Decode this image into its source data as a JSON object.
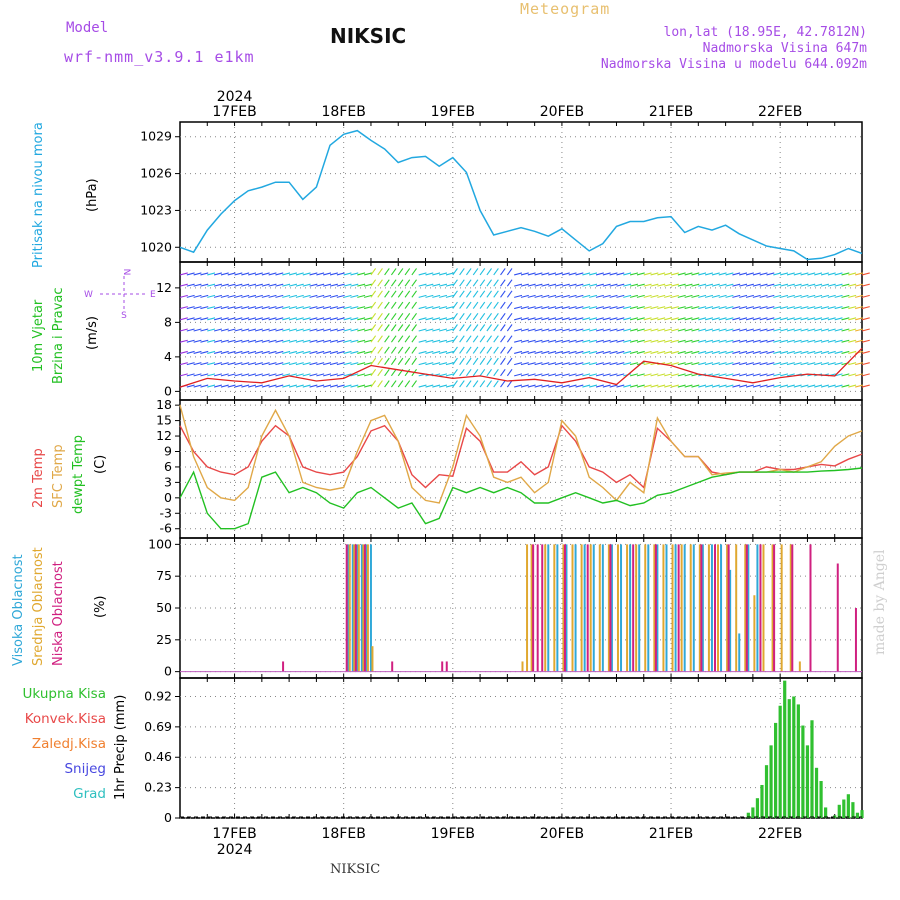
{
  "header": {
    "model_label": "Model",
    "model_name": "wrf-nmm_v3.9.1 e1km",
    "station": "NIKSIC",
    "title": "Meteogram",
    "lonlat": "lon,lat (18.95E, 42.7812N)",
    "altitude": "Nadmorska Visina 647m",
    "model_altitude": "Nadmorska Visina u modelu 644.092m"
  },
  "footer": {
    "station": "NIKSIC",
    "credit": "made by Angel"
  },
  "colors": {
    "pressure": "#22a8e0",
    "temp2m": "#e84848",
    "sfc": "#e0a848",
    "dewpt": "#22c022",
    "high_cloud": "#30a8d8",
    "mid_cloud": "#e0a830",
    "low_cloud": "#d02080",
    "precip": "#30c030",
    "label_purple": "#a64ce6"
  },
  "chart_data": [
    {
      "type": "line",
      "name": "pressure",
      "ylabel": "Pritisak na nivou mora",
      "unit": "(hPa)",
      "year": "2024",
      "dates": [
        "17FEB",
        "18FEB",
        "19FEB",
        "20FEB",
        "21FEB",
        "22FEB"
      ],
      "yticks": [
        1020,
        1023,
        1026,
        1029
      ],
      "ylim": [
        1018.8,
        1030.2
      ],
      "series": [
        {
          "x": [
            0,
            3,
            6,
            9,
            12,
            15,
            18,
            21,
            24,
            27,
            30,
            33,
            36,
            39,
            42,
            45,
            48,
            51,
            54,
            57,
            60,
            63,
            66,
            69,
            72,
            75,
            78,
            81,
            84,
            87,
            90,
            93,
            96,
            99,
            102,
            105,
            108,
            111,
            114,
            117,
            120,
            123,
            126,
            129,
            132,
            135,
            138,
            141,
            144,
            147,
            150
          ],
          "y": [
            1020,
            1019.6,
            1021.4,
            1022.7,
            1023.8,
            1024.6,
            1024.9,
            1025.3,
            1025.3,
            1023.9,
            1024.9,
            1028.3,
            1029.2,
            1029.5,
            1028.7,
            1028.0,
            1026.9,
            1027.3,
            1027.4,
            1026.6,
            1027.3,
            1026.1,
            1023.0,
            1021.0,
            1021.3,
            1021.6,
            1021.3,
            1020.9,
            1021.5,
            1020.6,
            1019.7,
            1020.3,
            1021.7,
            1022.1,
            1022.1,
            1022.4,
            1022.5,
            1021.2,
            1021.7,
            1021.4,
            1021.8,
            1021.1,
            1020.6,
            1020.1,
            1019.9,
            1019.7,
            1019.0,
            1019.1,
            1019.4,
            1019.9,
            1019.5
          ]
        }
      ]
    },
    {
      "type": "barb",
      "name": "wind",
      "ylabel": "10m Vjetar Brzina i Pravac",
      "unit": "(m/s)",
      "compass": [
        "N",
        "E",
        "W",
        "S"
      ],
      "yticks": [
        0,
        4,
        8,
        12
      ],
      "ylim": [
        -1,
        15
      ],
      "series": [
        {
          "name": "speed",
          "x": [
            0,
            6,
            12,
            18,
            24,
            30,
            36,
            42,
            48,
            54,
            60,
            66,
            72,
            78,
            84,
            90,
            96,
            102,
            108,
            114,
            120,
            126,
            132,
            138,
            144,
            150
          ],
          "y": [
            0.5,
            1.5,
            1.2,
            1.0,
            1.8,
            1.2,
            1.5,
            3.0,
            2.5,
            2.0,
            1.5,
            1.8,
            1.2,
            1.4,
            1.0,
            1.6,
            0.8,
            3.5,
            3.0,
            2.0,
            1.5,
            1.0,
            1.6,
            2.0,
            1.8,
            5.0
          ]
        }
      ]
    },
    {
      "type": "line",
      "name": "temperature",
      "ylabel": [
        "2m Temp",
        "SFC Temp",
        "dewpt Temp"
      ],
      "unit": "(C)",
      "yticks": [
        -6,
        -3,
        0,
        3,
        6,
        9,
        12,
        15,
        18
      ],
      "ylim": [
        -7.8,
        19
      ],
      "series": [
        {
          "name": "2m Temp",
          "x": [
            0,
            3,
            6,
            9,
            12,
            15,
            18,
            21,
            24,
            27,
            30,
            33,
            36,
            39,
            42,
            45,
            48,
            51,
            54,
            57,
            60,
            63,
            66,
            69,
            72,
            75,
            78,
            81,
            84,
            87,
            90,
            93,
            96,
            99,
            102,
            105,
            108,
            111,
            114,
            117,
            120,
            123,
            126,
            129,
            132,
            135,
            138,
            141,
            144,
            147,
            150
          ],
          "y": [
            14,
            9,
            6,
            5,
            4.5,
            6,
            11,
            14,
            12,
            6,
            5,
            4.5,
            5,
            8,
            13,
            14,
            11,
            4.5,
            2,
            4.5,
            4.2,
            13.5,
            11,
            5,
            5,
            7,
            4.5,
            6,
            14,
            11,
            6,
            5,
            3,
            4.5,
            2,
            13.5,
            11,
            8,
            8,
            5,
            4.5,
            5,
            5,
            6,
            5.5,
            5.5,
            6,
            6.5,
            6.2,
            7.5,
            8.5
          ]
        },
        {
          "name": "SFC Temp",
          "x": [
            0,
            3,
            6,
            9,
            12,
            15,
            18,
            21,
            24,
            27,
            30,
            33,
            36,
            39,
            42,
            45,
            48,
            51,
            54,
            57,
            60,
            63,
            66,
            69,
            72,
            75,
            78,
            81,
            84,
            87,
            90,
            93,
            96,
            99,
            102,
            105,
            108,
            111,
            114,
            117,
            120,
            123,
            126,
            129,
            132,
            135,
            138,
            141,
            144,
            147,
            150
          ],
          "y": [
            18,
            8,
            2,
            0,
            -0.5,
            2,
            12,
            17,
            12,
            3,
            2,
            1.5,
            2,
            9,
            15,
            16,
            11,
            2,
            -0.5,
            -1,
            6,
            16,
            12,
            4,
            3,
            4,
            1,
            3,
            15,
            12,
            4,
            2,
            -0.5,
            3,
            1,
            15.5,
            11,
            8,
            8,
            4.5,
            4.8,
            5,
            5,
            5,
            5.5,
            5,
            6,
            7,
            10,
            12,
            13
          ]
        },
        {
          "name": "dewpt Temp",
          "x": [
            0,
            3,
            6,
            9,
            12,
            15,
            18,
            21,
            24,
            27,
            30,
            33,
            36,
            39,
            42,
            45,
            48,
            51,
            54,
            57,
            60,
            63,
            66,
            69,
            72,
            75,
            78,
            81,
            84,
            87,
            90,
            93,
            96,
            99,
            102,
            105,
            108,
            111,
            114,
            117,
            120,
            123,
            126,
            129,
            132,
            135,
            138,
            141,
            144,
            147,
            150
          ],
          "y": [
            0,
            5,
            -3,
            -6,
            -6,
            -5,
            4,
            5,
            1,
            2,
            1,
            -1,
            -2,
            1,
            2,
            0,
            -2,
            -1,
            -5,
            -4,
            2,
            1,
            2,
            1,
            2,
            1,
            -1,
            -1,
            0,
            1,
            0,
            -1,
            -0.5,
            -1.5,
            -1,
            0.5,
            1,
            2,
            3,
            4,
            4.5,
            5,
            5,
            5,
            5,
            5,
            5,
            5.2,
            5.3,
            5.5,
            5.8
          ]
        }
      ]
    },
    {
      "type": "bar",
      "name": "cloud",
      "ylabel": [
        "Visoka Oblacnost",
        "Srednja Oblacnost",
        "Niska Oblacnost"
      ],
      "unit": "(%)",
      "yticks": [
        0,
        25,
        50,
        75,
        100
      ],
      "ylim": [
        -5,
        105
      ],
      "series": [
        {
          "name": "Visoka Oblacnost",
          "hours": [
            37,
            38,
            39,
            40,
            41,
            42,
            81,
            83,
            85,
            87,
            89,
            91,
            93,
            95,
            97,
            99,
            101,
            103,
            105,
            107,
            109,
            111,
            113,
            115,
            117,
            119,
            121,
            123,
            125,
            127
          ],
          "values": [
            100,
            100,
            100,
            100,
            100,
            100,
            100,
            100,
            100,
            100,
            100,
            100,
            100,
            100,
            100,
            100,
            100,
            100,
            100,
            100,
            100,
            100,
            100,
            100,
            100,
            100,
            80,
            30,
            100,
            100
          ]
        },
        {
          "name": "Srednja Oblacnost",
          "hours": [
            37,
            38,
            39,
            40,
            41,
            42,
            75,
            76,
            77,
            80,
            82,
            84,
            86,
            88,
            90,
            92,
            94,
            96,
            98,
            100,
            102,
            104,
            106,
            108,
            110,
            112,
            114,
            116,
            118,
            120,
            122,
            124,
            126,
            128,
            130,
            132,
            134,
            136
          ],
          "values": [
            100,
            100,
            100,
            100,
            100,
            20,
            8,
            100,
            100,
            100,
            100,
            100,
            100,
            100,
            100,
            100,
            100,
            100,
            100,
            100,
            100,
            100,
            100,
            100,
            100,
            100,
            100,
            100,
            100,
            100,
            100,
            100,
            60,
            100,
            100,
            100,
            100,
            8
          ]
        },
        {
          "name": "Niska Oblacnost",
          "hours": [
            23,
            37,
            39,
            41,
            47,
            58,
            59,
            78,
            79,
            80,
            85,
            90,
            95,
            100,
            105,
            110,
            115,
            118,
            121,
            125,
            128,
            131,
            135,
            139,
            145,
            149
          ],
          "values": [
            8,
            100,
            100,
            100,
            8,
            8,
            8,
            100,
            100,
            100,
            100,
            100,
            100,
            100,
            100,
            100,
            100,
            100,
            100,
            100,
            100,
            100,
            100,
            100,
            85,
            50
          ]
        }
      ]
    },
    {
      "type": "bar",
      "name": "precip",
      "ylabel": [
        "Ukupna Kisa",
        "Konvek.Kisa",
        "Zaledj.Kisa",
        "Snijeg",
        "Grad"
      ],
      "unit": "1hr Precip (mm)",
      "yticks": [
        0,
        0.23,
        0.46,
        0.69,
        0.92
      ],
      "ylim": [
        0,
        1.06
      ],
      "series": [
        {
          "name": "Ukupna Kisa",
          "hours": [
            125,
            126,
            127,
            128,
            129,
            130,
            131,
            132,
            133,
            134,
            135,
            136,
            137,
            138,
            139,
            140,
            141,
            142,
            143,
            144,
            145,
            146,
            147,
            148,
            149,
            150
          ],
          "values": [
            0.04,
            0.08,
            0.15,
            0.25,
            0.4,
            0.55,
            0.72,
            0.85,
            1.04,
            0.9,
            0.92,
            0.86,
            0.7,
            0.55,
            0.74,
            0.38,
            0.28,
            0.08,
            0,
            0.02,
            0.1,
            0.14,
            0.18,
            0.12,
            0.04,
            0.06
          ]
        }
      ]
    }
  ]
}
